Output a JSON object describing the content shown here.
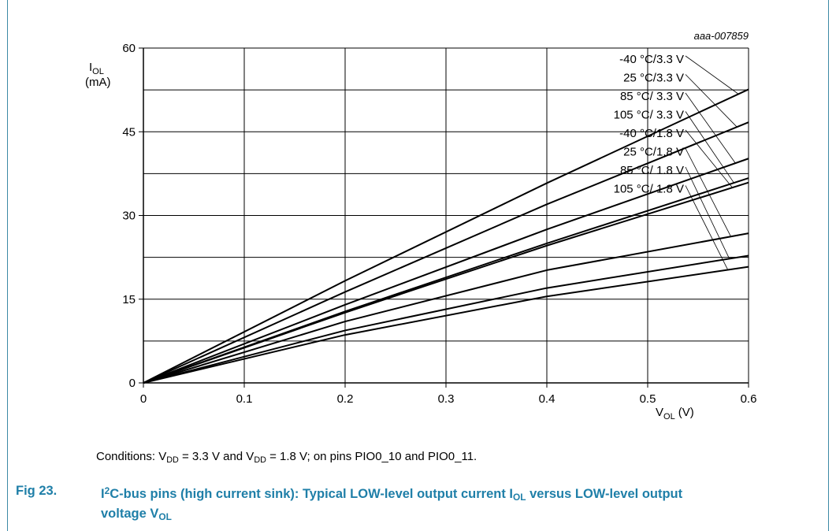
{
  "chart_data": {
    "type": "line",
    "id_label": "aaa-007859",
    "ylabel_main": "I",
    "ylabel_sub": "OL",
    "ylabel_unit": "(mA)",
    "xlabel_main": "V",
    "xlabel_sub": "OL",
    "xlabel_unit": "(V)",
    "xlim": [
      0,
      0.6
    ],
    "ylim": [
      0,
      60
    ],
    "x_ticks": [
      "0",
      "0.1",
      "0.2",
      "0.3",
      "0.4",
      "0.5",
      "0.6"
    ],
    "y_ticks": [
      "0",
      "15",
      "30",
      "45",
      "60"
    ],
    "grid": true,
    "x": [
      0,
      0.2,
      0.4,
      0.6
    ],
    "series": [
      {
        "name": "-40 °C/3.3 V",
        "values": [
          0,
          18.3,
          35.8,
          52.6
        ]
      },
      {
        "name": "25 °C/3.3 V",
        "values": [
          0,
          16.3,
          32.0,
          46.7
        ]
      },
      {
        "name": "85 °C/ 3.3 V",
        "values": [
          0,
          14.0,
          27.5,
          40.2
        ]
      },
      {
        "name": "105 °C/ 3.3 V",
        "values": [
          0,
          12.8,
          25.0,
          36.7
        ]
      },
      {
        "name": "-40 °C/1.8 V",
        "values": [
          0,
          12.6,
          24.6,
          35.9
        ]
      },
      {
        "name": "25 °C/1.8 V",
        "values": [
          0,
          11.0,
          20.2,
          26.8
        ]
      },
      {
        "name": "85 °C/ 1.8 V",
        "values": [
          0,
          9.4,
          17.0,
          22.8
        ]
      },
      {
        "name": "105 °C/ 1.8 V",
        "values": [
          0,
          8.6,
          15.5,
          20.8
        ]
      }
    ]
  },
  "conditions": {
    "prefix": "Conditions: V",
    "sub1": "DD",
    "mid1": " = 3.3 V and V",
    "sub2": "DD",
    "rest": " = 1.8 V; on pins PIO0_10 and PIO0_11."
  },
  "caption": {
    "number": "Fig 23.",
    "part1": "I",
    "sup": "2",
    "part2": "C-bus pins (high current sink): Typical LOW-level output current I",
    "sub1": "OL",
    "part3": " versus LOW-level output voltage V",
    "sub2": "OL"
  },
  "colors": {
    "caption": "#1f7fa8",
    "frame": "#3d8aa6",
    "line": "#000000"
  }
}
